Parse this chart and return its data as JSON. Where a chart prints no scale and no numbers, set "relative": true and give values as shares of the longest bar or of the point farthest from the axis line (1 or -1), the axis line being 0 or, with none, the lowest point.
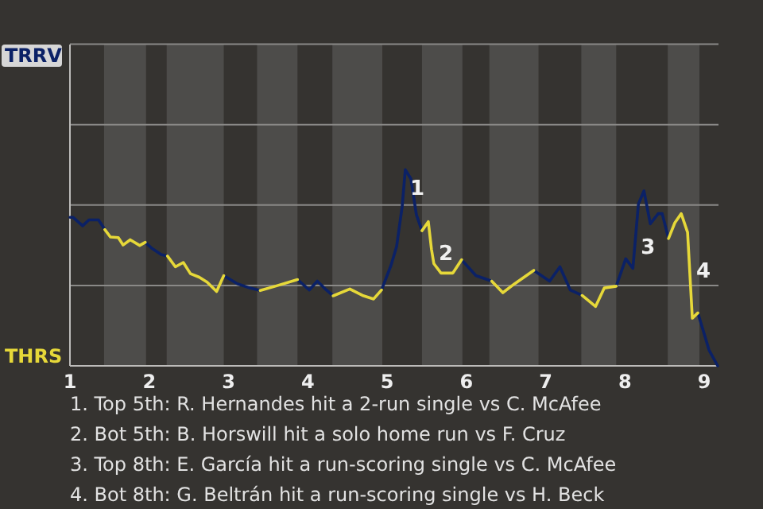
{
  "chart_data": {
    "type": "line",
    "relative": true,
    "ref_lines": [
      {
        "axis": "y",
        "value": 0.41,
        "color": "#8a8987"
      },
      {
        "axis": "y",
        "value": 0.82,
        "color": "#8a8987"
      },
      {
        "axis": "y",
        "value": 1.23,
        "color": "#8a8987"
      },
      {
        "axis": "y",
        "value": 1.64,
        "color": "#8a8987"
      }
    ],
    "xlim": [
      1,
      9.18
    ],
    "xticks": [
      1,
      2,
      3,
      4,
      5,
      6,
      7,
      8,
      9
    ],
    "bands": [
      {
        "axis": "x",
        "from": 1.43,
        "to": 1.96,
        "color": "#4d4c4a"
      },
      {
        "axis": "x",
        "from": 2.22,
        "to": 2.94,
        "color": "#4d4c4a"
      },
      {
        "axis": "x",
        "from": 3.36,
        "to": 3.87,
        "color": "#4d4c4a"
      },
      {
        "axis": "x",
        "from": 4.31,
        "to": 4.94,
        "color": "#4d4c4a"
      },
      {
        "axis": "x",
        "from": 5.44,
        "to": 5.95,
        "color": "#4d4c4a"
      },
      {
        "axis": "x",
        "from": 6.29,
        "to": 6.91,
        "color": "#4d4c4a"
      },
      {
        "axis": "x",
        "from": 7.45,
        "to": 7.89,
        "color": "#4d4c4a"
      },
      {
        "axis": "x",
        "from": 8.54,
        "to": 8.94,
        "color": "#4d4c4a"
      }
    ],
    "series": [
      {
        "name": "TRRV",
        "color": "#0b2166",
        "x": [
          1,
          1.04,
          1.16,
          1.24,
          1.36,
          1.44,
          1.67,
          1.95,
          2.03,
          2.15,
          2.23,
          2.55,
          2.94,
          3.11,
          3.27,
          3.4,
          3.61,
          3.87,
          4.02,
          4.12,
          4.22,
          4.32,
          4.6,
          4.93,
          5.05,
          5.12,
          5.19,
          5.23,
          5.3,
          5.37,
          5.44,
          5.72,
          5.94,
          6.12,
          6.32,
          6.63,
          6.85,
          7.05,
          7.18,
          7.31,
          7.46,
          7.69,
          7.89,
          8.01,
          8.1,
          8.17,
          8.24,
          8.32,
          8.42,
          8.47,
          8.55,
          8.73,
          8.92,
          8.99,
          9.06,
          9.17
        ],
        "values": [
          0.757,
          0.757,
          0.714,
          0.744,
          0.744,
          0.695,
          null,
          0.63,
          0.6,
          0.568,
          0.56,
          null,
          0.46,
          0.419,
          0.397,
          0.384,
          null,
          0.44,
          0.387,
          0.432,
          0.392,
          0.357,
          null,
          0.387,
          0.513,
          0.608,
          0.811,
          1,
          0.954,
          0.77,
          0.689,
          null,
          0.541,
          0.46,
          0.432,
          null,
          0.487,
          0.432,
          0.505,
          0.387,
          0.359,
          null,
          0.406,
          0.546,
          0.497,
          0.825,
          0.892,
          0.724,
          0.776,
          0.776,
          0.649,
          null,
          0.27,
          0.176,
          0.081,
          0
        ]
      },
      {
        "name": "THRS",
        "color": "#e6d839",
        "x": [
          1.44,
          1.51,
          1.61,
          1.67,
          1.76,
          1.88,
          1.95,
          2.05,
          2.23,
          2.33,
          2.43,
          2.52,
          2.63,
          2.73,
          2.85,
          2.94,
          3.08,
          3.4,
          3.59,
          3.87,
          4.09,
          4.32,
          4.53,
          4.69,
          4.83,
          4.93,
          5.13,
          5.44,
          5.52,
          5.56,
          5.59,
          5.68,
          5.83,
          5.94,
          6.02,
          6.32,
          6.46,
          6.61,
          6.85,
          7.11,
          7.46,
          7.63,
          7.74,
          7.89,
          8.21,
          8.55,
          8.63,
          8.71,
          8.79,
          8.85,
          8.92
        ],
        "values": [
          0.695,
          0.657,
          0.654,
          0.616,
          0.643,
          0.614,
          0.63,
          null,
          0.56,
          0.505,
          0.527,
          0.47,
          0.452,
          0.427,
          0.379,
          0.46,
          null,
          0.384,
          0.406,
          0.44,
          null,
          0.357,
          0.392,
          0.359,
          0.341,
          0.387,
          null,
          0.689,
          0.735,
          0.594,
          0.521,
          0.473,
          0.473,
          0.541,
          null,
          0.432,
          0.373,
          0.419,
          0.487,
          null,
          0.359,
          0.303,
          0.397,
          0.406,
          null,
          0.649,
          0.73,
          0.776,
          0.681,
          0.243,
          0.27
        ]
      }
    ],
    "annotations": [
      {
        "text": "1",
        "x": 5.21,
        "y": 0.9
      },
      {
        "text": "2",
        "x": 5.57,
        "y": 0.57
      },
      {
        "text": "3",
        "x": 8.12,
        "y": 0.6
      },
      {
        "text": "4",
        "x": 8.82,
        "y": 0.48
      },
      "1. Top 5th: R. Hernandes hit a 2-run single vs C. McAfee",
      "2. Bot 5th: B. Horswill hit a solo home run vs F. Cruz",
      "3. Top 8th: E. García hit a run-scoring single vs C. McAfee",
      "4. Bot 8th: G. Beltrán hit a run-scoring single vs H. Beck"
    ]
  }
}
